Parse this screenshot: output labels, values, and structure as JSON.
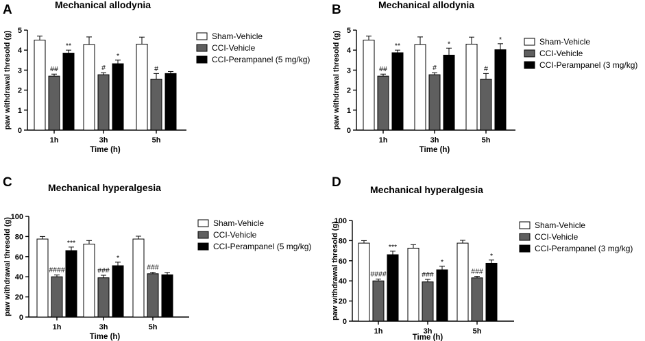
{
  "colors": {
    "sham": "#ffffff",
    "cci_vehicle": "#5f5f5f",
    "cci_perampanel": "#000000",
    "axis": "#000000"
  },
  "chart_data": [
    {
      "panel": "A",
      "type": "bar",
      "title": "Mechanical allodynia",
      "ylabel": "paw  withdrawal thresold (g)",
      "xlabel": "Time (h)",
      "ylim": [
        0,
        5
      ],
      "yticks": [
        "0",
        "1",
        "2",
        "3",
        "4",
        "5"
      ],
      "categories": [
        "1h",
        "3h",
        "5h"
      ],
      "series": [
        {
          "name": "Sham-Vehicle",
          "values": [
            4.5,
            4.28,
            4.3
          ],
          "errors": [
            0.2,
            0.38,
            0.35
          ]
        },
        {
          "name": "CCI-Vehicle",
          "values": [
            2.7,
            2.77,
            2.55
          ],
          "errors": [
            0.1,
            0.1,
            0.28
          ]
        },
        {
          "name": "CCI-Perampanel (5 mg/kg)",
          "values": [
            3.85,
            3.32,
            2.83
          ],
          "errors": [
            0.15,
            0.18,
            0.1
          ]
        }
      ],
      "annotations": [
        [
          "##",
          "",
          "#",
          "",
          "#",
          ""
        ],
        [
          "**",
          "",
          "*",
          "",
          "",
          ""
        ]
      ]
    },
    {
      "panel": "B",
      "type": "bar",
      "title": "Mechanical allodynia",
      "ylabel": "paw  withdrawal thresold (g)",
      "xlabel": "Time (h)",
      "ylim": [
        0,
        5
      ],
      "yticks": [
        "0",
        "1",
        "2",
        "3",
        "4",
        "5"
      ],
      "categories": [
        "1h",
        "3h",
        "5h"
      ],
      "series": [
        {
          "name": "Sham-Vehicle",
          "values": [
            4.5,
            4.28,
            4.3
          ],
          "errors": [
            0.2,
            0.38,
            0.35
          ]
        },
        {
          "name": "CCI-Vehicle",
          "values": [
            2.7,
            2.77,
            2.55
          ],
          "errors": [
            0.1,
            0.1,
            0.28
          ]
        },
        {
          "name": "CCI-Perampanel (3 mg/kg)",
          "values": [
            3.87,
            3.75,
            4.02
          ],
          "errors": [
            0.13,
            0.35,
            0.3
          ]
        }
      ],
      "annotations": [
        [
          "##",
          "#",
          "#"
        ],
        [
          "**",
          "*",
          "*"
        ]
      ]
    },
    {
      "panel": "C",
      "type": "bar",
      "title": "Mechanical hyperalgesia",
      "ylabel": "paw  withdrawal thresold (g)",
      "xlabel": "Time (h)",
      "ylim": [
        0,
        100
      ],
      "yticks": [
        "0",
        "20",
        "40",
        "60",
        "80",
        "100"
      ],
      "categories": [
        "1h",
        "3h",
        "5h"
      ],
      "series": [
        {
          "name": "Sham-Vehicle",
          "values": [
            77.5,
            72.5,
            77.5
          ],
          "errors": [
            2.5,
            3.5,
            2.8
          ]
        },
        {
          "name": "CCI-Vehicle",
          "values": [
            40,
            39,
            43
          ],
          "errors": [
            1.8,
            2.5,
            1.5
          ]
        },
        {
          "name": "CCI-Perampanel (5 mg/kg)",
          "values": [
            66,
            51,
            42
          ],
          "errors": [
            3.5,
            3.5,
            2.2
          ]
        }
      ],
      "annotations": [
        [
          "####",
          "###",
          "###"
        ],
        [
          "***",
          "*",
          ""
        ]
      ]
    },
    {
      "panel": "D",
      "type": "bar",
      "title": "Mechanical hyperalgesia",
      "ylabel": "paw  withdrawal thresold (g)",
      "xlabel": "Time (h)",
      "ylim": [
        0,
        100
      ],
      "yticks": [
        "0",
        "20",
        "40",
        "60",
        "80",
        "100"
      ],
      "categories": [
        "1h",
        "3h",
        "5h"
      ],
      "series": [
        {
          "name": "Sham-Vehicle",
          "values": [
            77.5,
            72.5,
            77.5
          ],
          "errors": [
            2.5,
            3.5,
            2.8
          ]
        },
        {
          "name": "CCI-Vehicle",
          "values": [
            40,
            39,
            43
          ],
          "errors": [
            1.8,
            2.5,
            1.5
          ]
        },
        {
          "name": "CCI-Perampanel (3 mg/kg)",
          "values": [
            66,
            51,
            57.5
          ],
          "errors": [
            3.5,
            3.5,
            3.2
          ]
        }
      ],
      "annotations": [
        [
          "####",
          "###",
          "###"
        ],
        [
          "***",
          "*",
          "*"
        ]
      ]
    }
  ]
}
